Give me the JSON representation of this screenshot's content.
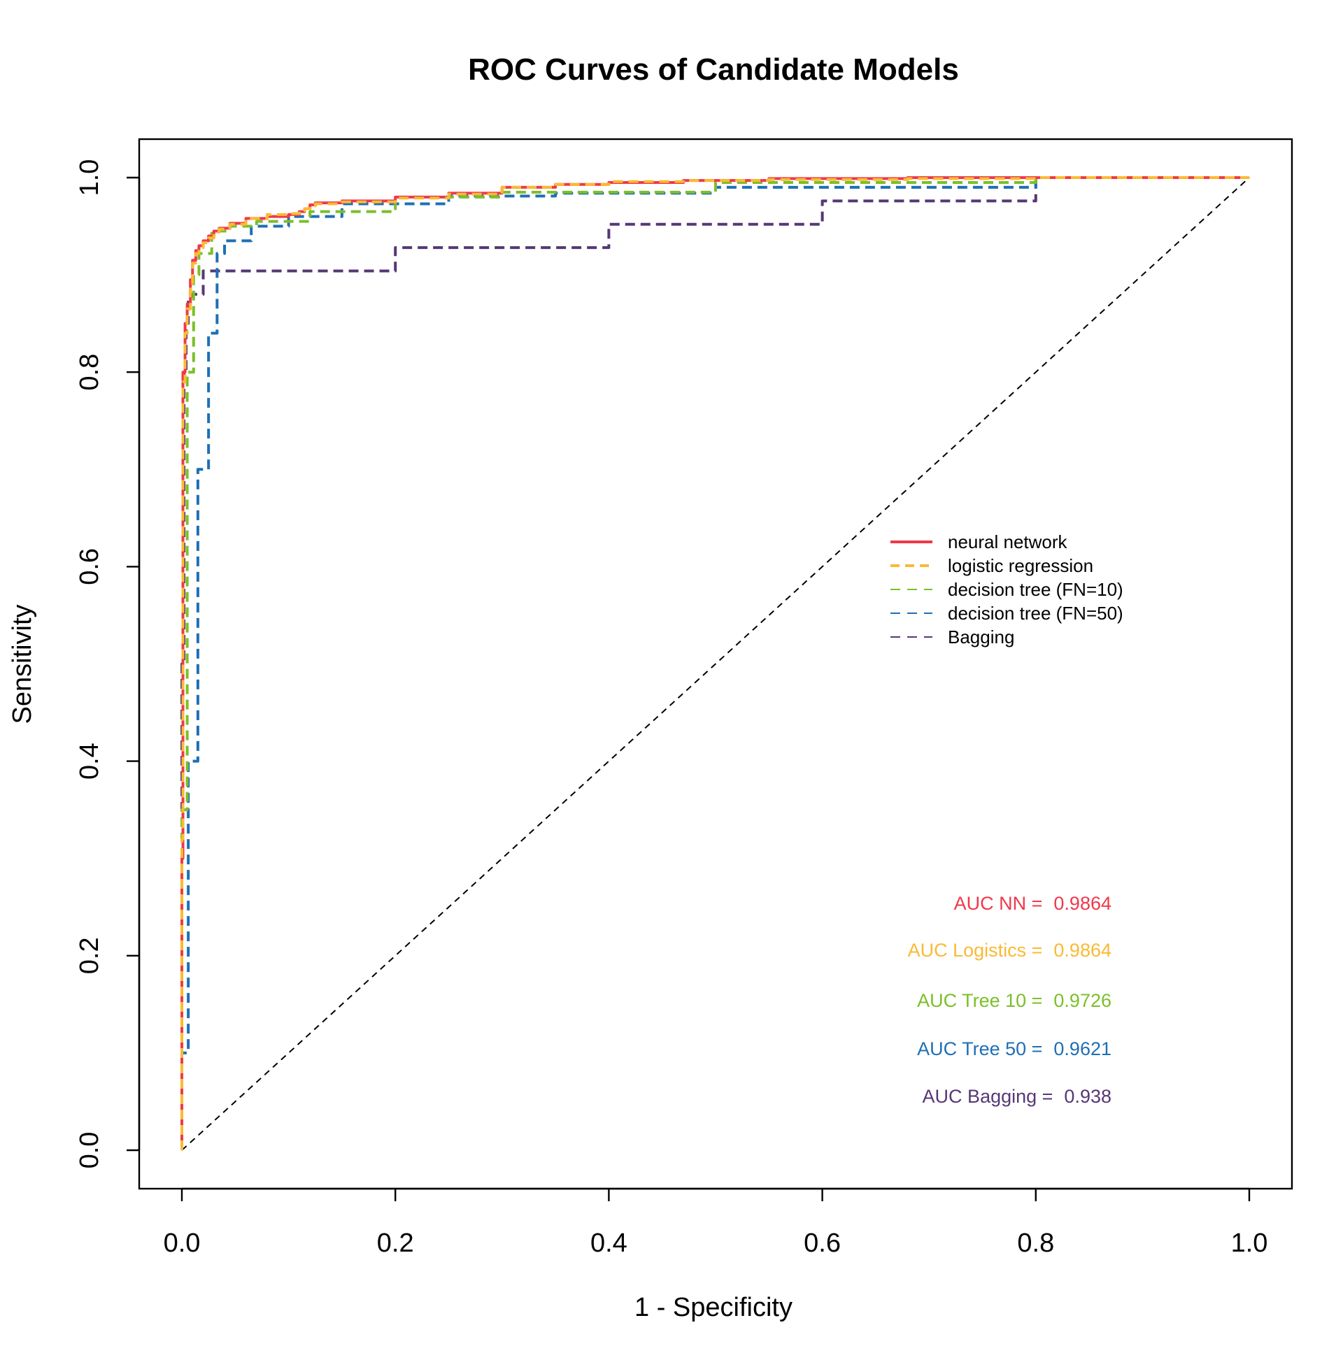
{
  "chart_data": {
    "type": "line",
    "title": "ROC Curves of Candidate Models",
    "xlabel": "1 - Specificity",
    "ylabel": "Sensitivity",
    "xlim": [
      0,
      1
    ],
    "ylim": [
      0,
      1
    ],
    "x_ticks": [
      "0.0",
      "0.2",
      "0.4",
      "0.6",
      "0.8",
      "1.0"
    ],
    "y_ticks": [
      "0.0",
      "0.2",
      "0.4",
      "0.6",
      "0.8",
      "1.0"
    ],
    "grid": false,
    "legend_position": "right-center",
    "reference_line": {
      "style": "dashed",
      "color": "#000000",
      "x": [
        0,
        1
      ],
      "y": [
        0,
        1
      ]
    },
    "series": [
      {
        "name": "neural network",
        "color": "#f0384a",
        "style": "solid",
        "x": [
          0,
          0.001,
          0.003,
          0.005,
          0.008,
          0.01,
          0.013,
          0.016,
          0.02,
          0.025,
          0.03,
          0.035,
          0.045,
          0.06,
          0.08,
          0.1,
          0.11,
          0.115,
          0.12,
          0.125,
          0.15,
          0.2,
          0.25,
          0.3,
          0.35,
          0.4,
          0.47,
          0.55,
          0.68,
          0.8,
          1.0
        ],
        "y": [
          0,
          0.3,
          0.8,
          0.85,
          0.87,
          0.895,
          0.915,
          0.925,
          0.93,
          0.935,
          0.94,
          0.945,
          0.948,
          0.953,
          0.958,
          0.96,
          0.962,
          0.965,
          0.968,
          0.972,
          0.974,
          0.976,
          0.98,
          0.984,
          0.99,
          0.993,
          0.995,
          0.997,
          0.999,
          1.0,
          1.0
        ]
      },
      {
        "name": "logistic regression",
        "color": "#f9ba34",
        "style": "dashed",
        "x": [
          0,
          0.001,
          0.003,
          0.005,
          0.008,
          0.01,
          0.013,
          0.016,
          0.02,
          0.025,
          0.03,
          0.035,
          0.045,
          0.06,
          0.08,
          0.1,
          0.11,
          0.115,
          0.12,
          0.125,
          0.15,
          0.2,
          0.25,
          0.3,
          0.35,
          0.4,
          0.47,
          0.55,
          0.68,
          0.8,
          1.0
        ],
        "y": [
          0,
          0.32,
          0.79,
          0.84,
          0.865,
          0.89,
          0.912,
          0.922,
          0.928,
          0.933,
          0.938,
          0.944,
          0.947,
          0.952,
          0.958,
          0.962,
          0.963,
          0.966,
          0.968,
          0.971,
          0.973,
          0.975,
          0.979,
          0.983,
          0.99,
          0.993,
          0.996,
          0.997,
          0.998,
          0.999,
          1.0
        ]
      },
      {
        "name": "decision tree (FN=10)",
        "color": "#7bbf2a",
        "style": "dashed",
        "x": [
          0,
          0.005,
          0.011,
          0.016,
          0.028,
          0.045,
          0.07,
          0.12,
          0.2,
          0.3,
          0.5,
          0.8,
          1.0
        ],
        "y": [
          0,
          0.35,
          0.8,
          0.9,
          0.922,
          0.945,
          0.95,
          0.955,
          0.965,
          0.98,
          0.985,
          0.995,
          1.0
        ]
      },
      {
        "name": "decision tree (FN=50)",
        "color": "#1f6fb5",
        "style": "dashed",
        "x": [
          0,
          0.006,
          0.015,
          0.025,
          0.033,
          0.04,
          0.065,
          0.1,
          0.15,
          0.25,
          0.35,
          0.5,
          0.8,
          1.0
        ],
        "y": [
          0,
          0.1,
          0.4,
          0.7,
          0.84,
          0.922,
          0.935,
          0.95,
          0.96,
          0.973,
          0.981,
          0.984,
          0.99,
          1.0
        ]
      },
      {
        "name": "Bagging",
        "color": "#563776",
        "style": "dashed",
        "x": [
          0,
          0.002,
          0.004,
          0.006,
          0.01,
          0.02,
          0.2,
          0.4,
          0.6,
          0.8,
          1.0
        ],
        "y": [
          0,
          0.5,
          0.8,
          0.85,
          0.878,
          0.88,
          0.904,
          0.928,
          0.952,
          0.976,
          1.0
        ]
      }
    ],
    "annotations": [
      {
        "label": "AUC NN = ",
        "value": "0.9864",
        "color": "#f0384a"
      },
      {
        "label": "AUC Logistics = ",
        "value": "0.9864",
        "color": "#f9ba34"
      },
      {
        "label": "AUC Tree 10 = ",
        "value": "0.9726",
        "color": "#7bbf2a"
      },
      {
        "label": "AUC Tree 50 = ",
        "value": "0.9621",
        "color": "#1f6fb5"
      },
      {
        "label": "AUC Bagging = ",
        "value": "0.938",
        "color": "#563776"
      }
    ]
  }
}
